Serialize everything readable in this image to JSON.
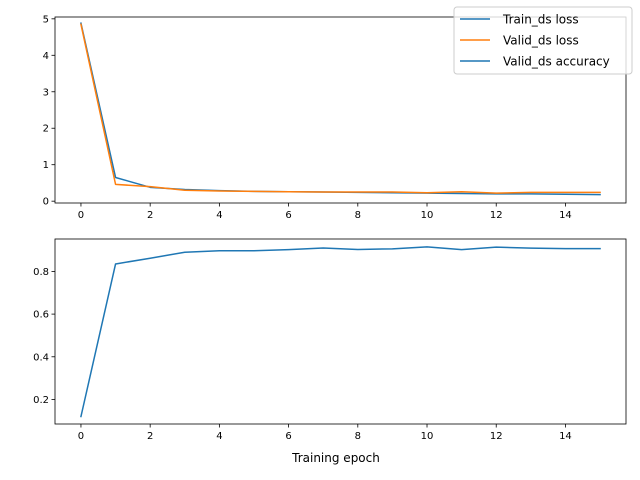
{
  "chart_data": [
    {
      "type": "line",
      "x": [
        0,
        1,
        2,
        3,
        4,
        5,
        6,
        7,
        8,
        9,
        10,
        11,
        12,
        13,
        14,
        15
      ],
      "series": [
        {
          "name": "Train_ds loss",
          "color": "#1f77b4",
          "values": [
            4.88,
            0.65,
            0.38,
            0.32,
            0.29,
            0.27,
            0.26,
            0.25,
            0.24,
            0.23,
            0.22,
            0.21,
            0.2,
            0.2,
            0.19,
            0.18
          ]
        },
        {
          "name": "Valid_ds loss",
          "color": "#ff7f0e",
          "values": [
            4.85,
            0.46,
            0.4,
            0.3,
            0.28,
            0.27,
            0.26,
            0.25,
            0.25,
            0.25,
            0.23,
            0.26,
            0.22,
            0.24,
            0.24,
            0.24
          ]
        }
      ],
      "xlim": [
        -0.75,
        15.75
      ],
      "ylim": [
        -0.05,
        5.05
      ],
      "xticks": [
        0,
        2,
        4,
        6,
        8,
        10,
        12,
        14
      ],
      "yticks": [
        0,
        1,
        2,
        3,
        4,
        5
      ],
      "grid": false
    },
    {
      "type": "line",
      "x": [
        0,
        1,
        2,
        3,
        4,
        5,
        6,
        7,
        8,
        9,
        10,
        11,
        12,
        13,
        14,
        15
      ],
      "series": [
        {
          "name": "Valid_ds accuracy",
          "color": "#1f77b4",
          "values": [
            0.12,
            0.835,
            0.862,
            0.89,
            0.897,
            0.897,
            0.902,
            0.91,
            0.903,
            0.906,
            0.915,
            0.902,
            0.914,
            0.909,
            0.907,
            0.907
          ]
        }
      ],
      "xlim": [
        -0.75,
        15.75
      ],
      "ylim": [
        0.085,
        0.952
      ],
      "xticks": [
        0,
        2,
        4,
        6,
        8,
        10,
        12,
        14
      ],
      "yticks": [
        0.2,
        0.4,
        0.6,
        0.8
      ],
      "xlabel": "Training epoch",
      "grid": false
    }
  ],
  "legend": {
    "placement": "top-right",
    "entries": [
      {
        "label": "Train_ds loss",
        "color": "#1f77b4"
      },
      {
        "label": "Valid_ds loss",
        "color": "#ff7f0e"
      },
      {
        "label": "Valid_ds accuracy",
        "color": "#1f77b4"
      }
    ]
  }
}
